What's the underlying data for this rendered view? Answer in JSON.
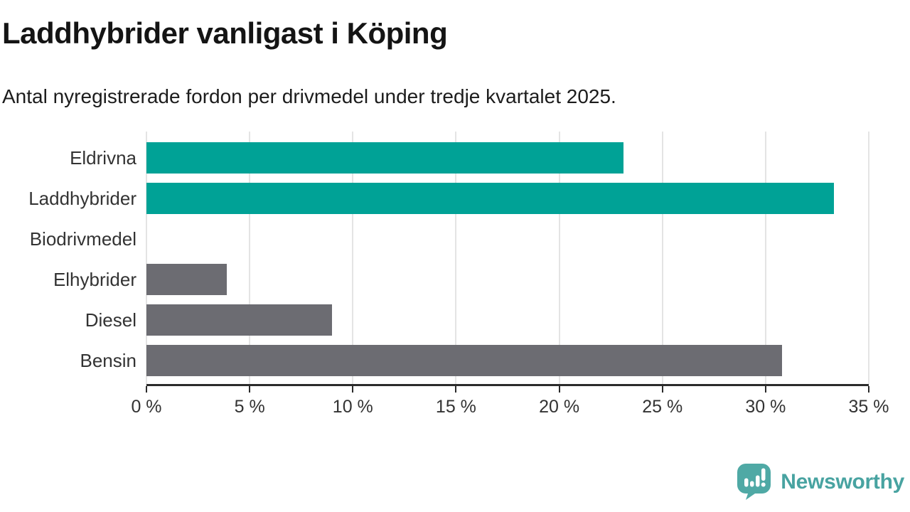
{
  "title": "Laddhybrider vanligast i Köping",
  "subtitle": "Antal nyregistrerade fordon per drivmedel under tredje kvartalet 2025.",
  "chart_data": {
    "type": "bar",
    "orientation": "horizontal",
    "categories": [
      "Eldrivna",
      "Laddhybrider",
      "Biodrivmedel",
      "Elhybrider",
      "Diesel",
      "Bensin"
    ],
    "values": [
      23.1,
      33.3,
      0,
      3.9,
      9,
      30.8
    ],
    "bar_colors": [
      "#00a296",
      "#00a296",
      "#6c6c72",
      "#6c6c72",
      "#6c6c72",
      "#6c6c72"
    ],
    "value_unit": "%",
    "xlim": [
      0,
      35
    ],
    "x_ticks": [
      0,
      5,
      10,
      15,
      20,
      25,
      30,
      35
    ],
    "x_tick_labels": [
      "0 %",
      "5 %",
      "10 %",
      "15 %",
      "20 %",
      "25 %",
      "30 %",
      "35 %"
    ],
    "grid": "vertical-lines",
    "legend": "none"
  },
  "colors": {
    "accent_teal": "#00a296",
    "bar_gray": "#6c6c72",
    "gridline": "#e4e4e4",
    "axis": "#2b2b2b",
    "text": "#333333",
    "title_text": "#141414",
    "logo_teal": "#48a3a1"
  },
  "branding": {
    "name": "Newsworthy",
    "icon": "speech-bubble-with-bar-chart-and-exclamation"
  }
}
